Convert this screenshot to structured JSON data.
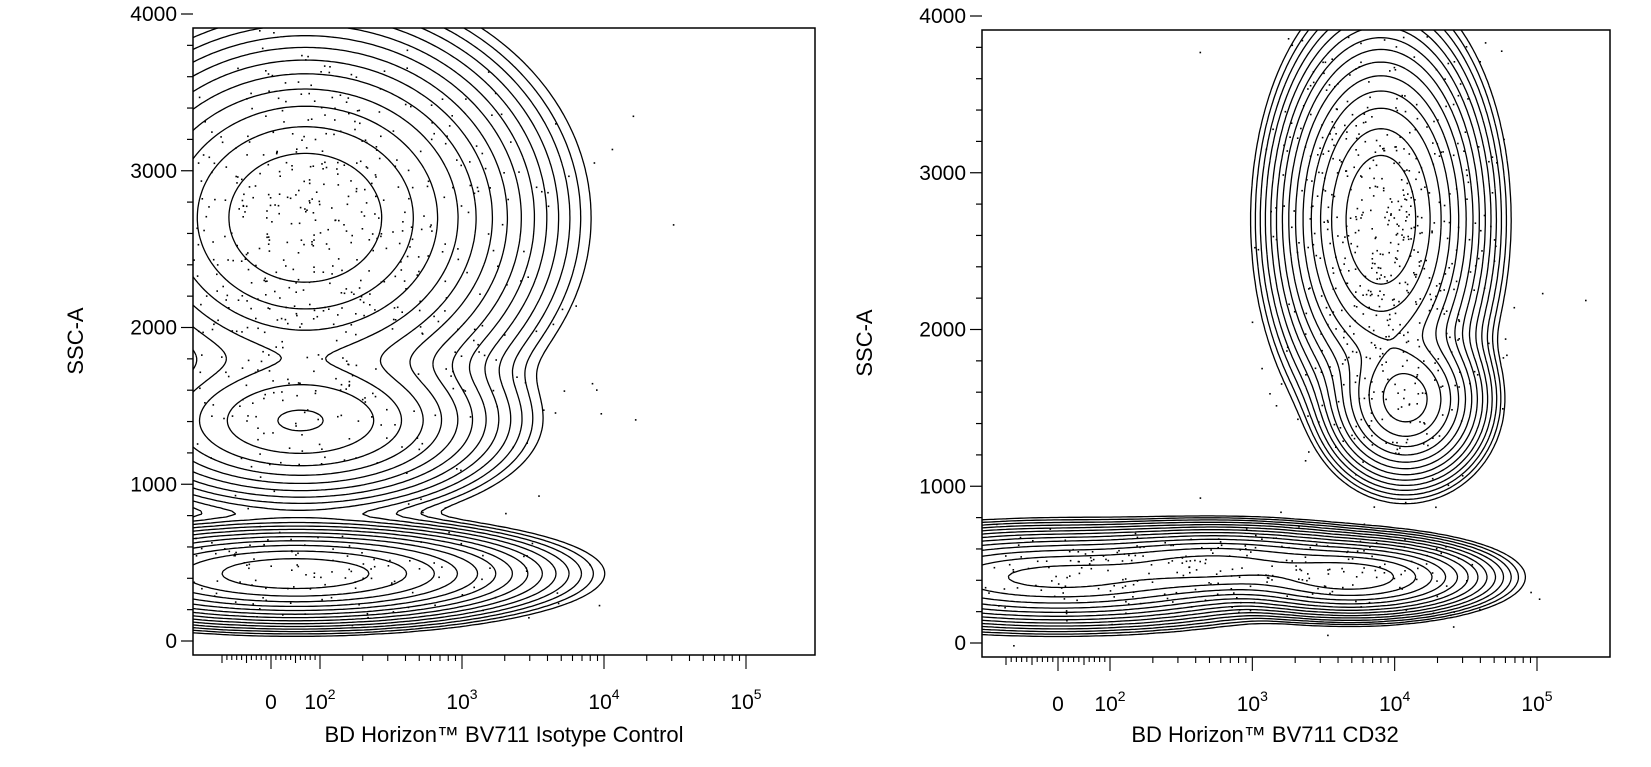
{
  "chart_data": [
    {
      "type": "contour",
      "xlabel": "BD Horizon™ BV711 Isotype Control",
      "ylabel": "SSC-A",
      "xscale": "biexponential",
      "ylim": [
        0,
        4000
      ],
      "yticks": [
        "0",
        "1000",
        "2000",
        "3000",
        "4000"
      ],
      "xticks": [
        {
          "label": "0",
          "value": 0
        },
        {
          "base": "10",
          "exp": "2",
          "value": 100
        },
        {
          "base": "10",
          "exp": "3",
          "value": 1000
        },
        {
          "base": "10",
          "exp": "4",
          "value": 10000
        },
        {
          "base": "10",
          "exp": "5",
          "value": 100000
        }
      ],
      "populations": [
        {
          "x": 50,
          "y": 430,
          "x_sd": 0.6,
          "y_sd": 110,
          "weight": 0.18
        },
        {
          "x": 60,
          "y": 1400,
          "x_sd": 0.5,
          "y_sd": 200,
          "weight": 0.12
        },
        {
          "x": 70,
          "y": 2700,
          "x_sd": 0.55,
          "y_sd": 420,
          "weight": 0.7
        }
      ]
    },
    {
      "type": "contour",
      "xlabel": "BD Horizon™ BV711 CD32",
      "ylabel": "SSC-A",
      "xscale": "biexponential",
      "ylim": [
        0,
        4000
      ],
      "yticks": [
        "0",
        "1000",
        "2000",
        "3000",
        "4000"
      ],
      "xticks": [
        {
          "label": "0",
          "value": 0
        },
        {
          "base": "10",
          "exp": "2",
          "value": 100
        },
        {
          "base": "10",
          "exp": "3",
          "value": 1000
        },
        {
          "base": "10",
          "exp": "4",
          "value": 10000
        },
        {
          "base": "10",
          "exp": "5",
          "value": 100000
        }
      ],
      "populations": [
        {
          "x": 0,
          "y": 420,
          "x_sd": 0.6,
          "y_sd": 110,
          "weight": 0.16
        },
        {
          "x": 600,
          "y": 500,
          "x_sd": 0.45,
          "y_sd": 90,
          "weight": 0.09
        },
        {
          "x": 5000,
          "y": 420,
          "x_sd": 0.35,
          "y_sd": 90,
          "weight": 0.09
        },
        {
          "x": 8000,
          "y": 2700,
          "x_sd": 0.25,
          "y_sd": 420,
          "weight": 0.56
        },
        {
          "x": 12000,
          "y": 1550,
          "x_sd": 0.2,
          "y_sd": 190,
          "weight": 0.1
        }
      ]
    }
  ]
}
